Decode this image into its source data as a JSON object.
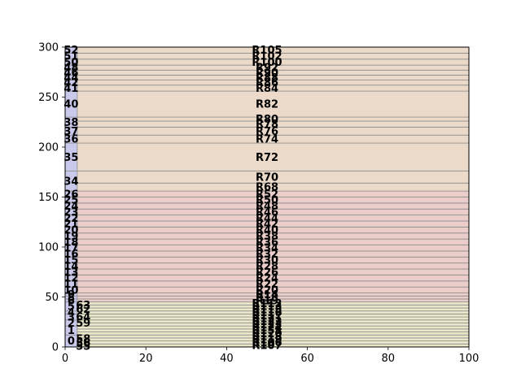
{
  "chart_data": {
    "type": "bar",
    "xlim": [
      0,
      100
    ],
    "ylim": [
      0,
      300
    ],
    "x_ticks": [
      0,
      20,
      40,
      60,
      80,
      100
    ],
    "y_ticks": [
      0,
      50,
      100,
      150,
      200,
      250,
      300
    ],
    "grid": false,
    "colors": {
      "yellow": "#ebe7c9",
      "red": "#ebcdc9",
      "orange": "#ebdac9",
      "blue": "#c9c9eb",
      "line": "#8c8c8c"
    },
    "bands": [
      {
        "id": "R107",
        "start": 0,
        "end": 3,
        "group": "yellow"
      },
      {
        "id": "R106",
        "start": 3,
        "end": 6,
        "group": "yellow"
      },
      {
        "id": "R119",
        "start": 6,
        "end": 9,
        "group": "yellow"
      },
      {
        "id": "R118",
        "start": 9,
        "end": 12,
        "group": "yellow"
      },
      {
        "id": "R120",
        "start": 12,
        "end": 15,
        "group": "yellow"
      },
      {
        "id": "R151",
        "start": 15,
        "end": 18,
        "group": "yellow"
      },
      {
        "id": "R124",
        "start": 18,
        "end": 21,
        "group": "yellow"
      },
      {
        "id": "R123",
        "start": 21,
        "end": 24,
        "group": "yellow"
      },
      {
        "id": "R122",
        "start": 24,
        "end": 27,
        "group": "yellow"
      },
      {
        "id": "R121",
        "start": 27,
        "end": 30,
        "group": "yellow"
      },
      {
        "id": "R117",
        "start": 30,
        "end": 33,
        "group": "yellow"
      },
      {
        "id": "R116",
        "start": 33,
        "end": 36,
        "group": "yellow"
      },
      {
        "id": "R115",
        "start": 36,
        "end": 39,
        "group": "yellow"
      },
      {
        "id": "R113",
        "start": 39,
        "end": 42,
        "group": "yellow"
      },
      {
        "id": "R112",
        "start": 42,
        "end": 45,
        "group": "yellow"
      },
      {
        "id": "R19",
        "start": 45,
        "end": 48,
        "group": "red"
      },
      {
        "id": "R18",
        "start": 48,
        "end": 51,
        "group": "red"
      },
      {
        "id": "R14",
        "start": 51,
        "end": 54,
        "group": "red"
      },
      {
        "id": "R20",
        "start": 54,
        "end": 60,
        "group": "red"
      },
      {
        "id": "R22",
        "start": 60,
        "end": 66,
        "group": "red"
      },
      {
        "id": "R24",
        "start": 66,
        "end": 72,
        "group": "red"
      },
      {
        "id": "R26",
        "start": 72,
        "end": 78,
        "group": "red"
      },
      {
        "id": "R28",
        "start": 78,
        "end": 84,
        "group": "red"
      },
      {
        "id": "R30",
        "start": 84,
        "end": 90,
        "group": "red"
      },
      {
        "id": "R32",
        "start": 90,
        "end": 96,
        "group": "red"
      },
      {
        "id": "R34",
        "start": 96,
        "end": 102,
        "group": "red"
      },
      {
        "id": "R36",
        "start": 102,
        "end": 108,
        "group": "red"
      },
      {
        "id": "R38",
        "start": 108,
        "end": 114,
        "group": "red"
      },
      {
        "id": "R40",
        "start": 114,
        "end": 120,
        "group": "red"
      },
      {
        "id": "R42",
        "start": 120,
        "end": 126,
        "group": "red"
      },
      {
        "id": "R44",
        "start": 126,
        "end": 132,
        "group": "red"
      },
      {
        "id": "R46",
        "start": 132,
        "end": 138,
        "group": "red"
      },
      {
        "id": "R48",
        "start": 138,
        "end": 144,
        "group": "red"
      },
      {
        "id": "R50",
        "start": 144,
        "end": 150,
        "group": "red"
      },
      {
        "id": "R52",
        "start": 150,
        "end": 156,
        "group": "red"
      },
      {
        "id": "R68",
        "start": 156,
        "end": 164,
        "group": "orange"
      },
      {
        "id": "R70",
        "start": 164,
        "end": 176,
        "group": "orange"
      },
      {
        "id": "R72",
        "start": 176,
        "end": 204,
        "group": "orange"
      },
      {
        "id": "R74",
        "start": 204,
        "end": 212,
        "group": "orange"
      },
      {
        "id": "R76",
        "start": 212,
        "end": 220,
        "group": "orange"
      },
      {
        "id": "R78",
        "start": 220,
        "end": 226,
        "group": "orange"
      },
      {
        "id": "R80",
        "start": 226,
        "end": 230,
        "group": "orange"
      },
      {
        "id": "R82",
        "start": 230,
        "end": 256,
        "group": "orange"
      },
      {
        "id": "R84",
        "start": 256,
        "end": 262,
        "group": "orange"
      },
      {
        "id": "R86",
        "start": 262,
        "end": 267,
        "group": "orange"
      },
      {
        "id": "R88",
        "start": 267,
        "end": 272,
        "group": "orange"
      },
      {
        "id": "R90",
        "start": 272,
        "end": 277,
        "group": "orange"
      },
      {
        "id": "R92",
        "start": 277,
        "end": 282,
        "group": "orange"
      },
      {
        "id": "R100",
        "start": 282,
        "end": 288,
        "group": "orange"
      },
      {
        "id": "R102",
        "start": 288,
        "end": 294,
        "group": "orange"
      },
      {
        "id": "R105",
        "start": 294,
        "end": 300,
        "group": "orange"
      }
    ],
    "thin_bars": {
      "xmax": 3,
      "bars": [
        {
          "id": "0",
          "start": 0,
          "end": 12
        },
        {
          "id": "1",
          "start": 12,
          "end": 21
        },
        {
          "id": "2",
          "start": 21,
          "end": 27
        },
        {
          "id": "3",
          "start": 27,
          "end": 33
        },
        {
          "id": "4",
          "start": 33,
          "end": 36
        },
        {
          "id": "5",
          "start": 36,
          "end": 45
        },
        {
          "id": "6",
          "start": 45,
          "end": 48
        },
        {
          "id": "8",
          "start": 48,
          "end": 51
        },
        {
          "id": "9",
          "start": 51,
          "end": 54
        },
        {
          "id": "10",
          "start": 54,
          "end": 60
        },
        {
          "id": "11",
          "start": 60,
          "end": 66
        },
        {
          "id": "12",
          "start": 66,
          "end": 72
        },
        {
          "id": "13",
          "start": 72,
          "end": 78
        },
        {
          "id": "14",
          "start": 78,
          "end": 84
        },
        {
          "id": "15",
          "start": 84,
          "end": 90
        },
        {
          "id": "16",
          "start": 90,
          "end": 96
        },
        {
          "id": "17",
          "start": 96,
          "end": 102
        },
        {
          "id": "18",
          "start": 102,
          "end": 108
        },
        {
          "id": "19",
          "start": 108,
          "end": 114
        },
        {
          "id": "20",
          "start": 114,
          "end": 120
        },
        {
          "id": "21",
          "start": 120,
          "end": 126
        },
        {
          "id": "22",
          "start": 126,
          "end": 132
        },
        {
          "id": "23",
          "start": 132,
          "end": 138
        },
        {
          "id": "24",
          "start": 138,
          "end": 144
        },
        {
          "id": "25",
          "start": 144,
          "end": 150
        },
        {
          "id": "26",
          "start": 150,
          "end": 156
        },
        {
          "id": "34",
          "start": 156,
          "end": 176
        },
        {
          "id": "35",
          "start": 176,
          "end": 204
        },
        {
          "id": "36",
          "start": 204,
          "end": 212
        },
        {
          "id": "37",
          "start": 212,
          "end": 220
        },
        {
          "id": "38",
          "start": 220,
          "end": 230
        },
        {
          "id": "40",
          "start": 230,
          "end": 256
        },
        {
          "id": "41",
          "start": 256,
          "end": 262
        },
        {
          "id": "42",
          "start": 262,
          "end": 267
        },
        {
          "id": "44",
          "start": 267,
          "end": 272
        },
        {
          "id": "46",
          "start": 272,
          "end": 277
        },
        {
          "id": "48",
          "start": 277,
          "end": 282
        },
        {
          "id": "50",
          "start": 282,
          "end": 288
        },
        {
          "id": "51",
          "start": 288,
          "end": 294
        },
        {
          "id": "52",
          "start": 294,
          "end": 300
        }
      ]
    },
    "inner_labels": [
      {
        "text": "63",
        "y": 42
      },
      {
        "text": "62",
        "y": 38
      },
      {
        "text": "64",
        "y": 30
      },
      {
        "text": "59",
        "y": 24
      },
      {
        "text": "58",
        "y": 8
      },
      {
        "text": "56",
        "y": 4
      },
      {
        "text": "55",
        "y": 1
      }
    ]
  }
}
